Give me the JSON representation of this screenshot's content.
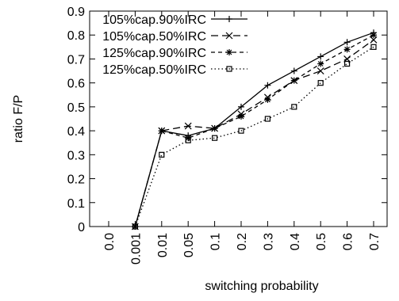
{
  "chart_data": {
    "type": "line",
    "title": "",
    "xlabel": "switching probability",
    "ylabel": "ratio F/P",
    "categories": [
      "0.0",
      "0.001",
      "0.01",
      "0.05",
      "0.1",
      "0.2",
      "0.3",
      "0.4",
      "0.5",
      "0.6",
      "0.7"
    ],
    "ylim": [
      0,
      0.9
    ],
    "yticks": [
      "0",
      "0.1",
      "0.2",
      "0.3",
      "0.4",
      "0.5",
      "0.6",
      "0.7",
      "0.8",
      "0.9"
    ],
    "grid": false,
    "legend_position": "top-left",
    "series": [
      {
        "name": "105%cap.90%IRC",
        "marker": "plus",
        "dash": "solid",
        "x": [
          "0.001",
          "0.01",
          "0.05",
          "0.1",
          "0.2",
          "0.3",
          "0.4",
          "0.5",
          "0.6",
          "0.7"
        ],
        "values": [
          0.0,
          0.4,
          0.38,
          0.41,
          0.5,
          0.59,
          0.65,
          0.71,
          0.77,
          0.81
        ]
      },
      {
        "name": "105%cap.50%IRC",
        "marker": "x",
        "dash": "dashed",
        "x": [
          "0.001",
          "0.01",
          "0.05",
          "0.1",
          "0.2",
          "0.3",
          "0.4",
          "0.5",
          "0.6",
          "0.7"
        ],
        "values": [
          0.0,
          0.4,
          0.42,
          0.41,
          0.47,
          0.54,
          0.61,
          0.65,
          0.7,
          0.78
        ]
      },
      {
        "name": "125%cap.90%IRC",
        "marker": "star",
        "dash": "short-dash",
        "x": [
          "0.001",
          "0.01",
          "0.05",
          "0.1",
          "0.2",
          "0.3",
          "0.4",
          "0.5",
          "0.6",
          "0.7"
        ],
        "values": [
          0.0,
          0.4,
          0.37,
          0.41,
          0.46,
          0.53,
          0.61,
          0.68,
          0.74,
          0.8
        ]
      },
      {
        "name": "125%cap.50%IRC",
        "marker": "square",
        "dash": "dotted",
        "x": [
          "0.001",
          "0.01",
          "0.05",
          "0.1",
          "0.2",
          "0.3",
          "0.4",
          "0.5",
          "0.6",
          "0.7"
        ],
        "values": [
          0.0,
          0.3,
          0.36,
          0.37,
          0.4,
          0.45,
          0.5,
          0.6,
          0.68,
          0.75
        ]
      }
    ]
  }
}
